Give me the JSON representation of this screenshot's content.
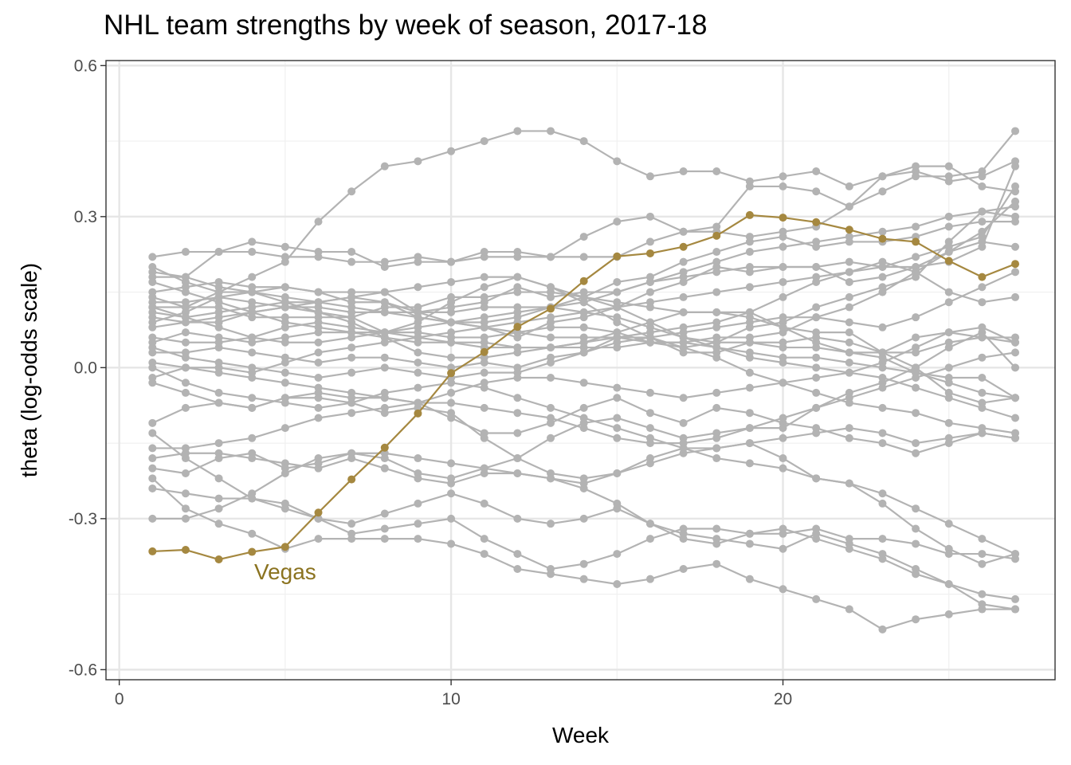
{
  "chart_data": {
    "type": "line",
    "title": "NHL team strengths by week of season, 2017-18",
    "xlabel": "Week",
    "ylabel": "theta (log-odds scale)",
    "xlim": [
      -0.4,
      28.2
    ],
    "ylim": [
      -0.62,
      0.61
    ],
    "xticks": [
      0,
      10,
      20
    ],
    "xtick_labels": [
      "0",
      "10",
      "20"
    ],
    "yticks": [
      -0.6,
      -0.3,
      0.0,
      0.3,
      0.6
    ],
    "ytick_labels": [
      "-0.6",
      "-0.3",
      "0.0",
      "0.3",
      "0.6"
    ],
    "grid": true,
    "theme": "bw",
    "x": [
      1,
      2,
      3,
      4,
      5,
      6,
      7,
      8,
      9,
      10,
      11,
      12,
      13,
      14,
      15,
      16,
      17,
      18,
      19,
      20,
      21,
      22,
      23,
      24,
      25,
      26,
      27
    ],
    "highlight_color": "#a58840",
    "annotation_color": "#8b7320",
    "other_color": "#b3b3b3",
    "annotations": [
      {
        "text": "Vegas",
        "x": 5,
        "y": -0.405,
        "series": "Vegas"
      }
    ],
    "series": [
      {
        "name": "Vegas",
        "highlight": true,
        "values": [
          -0.365,
          -0.362,
          -0.381,
          -0.366,
          -0.356,
          -0.288,
          -0.222,
          -0.159,
          -0.091,
          -0.011,
          0.031,
          0.081,
          0.117,
          0.172,
          0.221,
          0.227,
          0.24,
          0.262,
          0.303,
          0.298,
          0.289,
          0.274,
          0.256,
          0.25,
          0.212,
          0.18,
          0.206
        ]
      },
      {
        "values": [
          0.14,
          0.12,
          0.15,
          0.18,
          0.21,
          0.29,
          0.35,
          0.4,
          0.41,
          0.43,
          0.45,
          0.47,
          0.47,
          0.45,
          0.41,
          0.38,
          0.39,
          0.39,
          0.37,
          0.38,
          0.39,
          0.36,
          0.38,
          0.39,
          0.37,
          0.38,
          0.41
        ]
      },
      {
        "values": [
          0.22,
          0.23,
          0.23,
          0.23,
          0.22,
          0.22,
          0.21,
          0.21,
          0.22,
          0.21,
          0.22,
          0.22,
          0.22,
          0.22,
          0.22,
          0.25,
          0.27,
          0.28,
          0.36,
          0.36,
          0.35,
          0.32,
          0.35,
          0.38,
          0.38,
          0.39,
          0.47
        ]
      },
      {
        "values": [
          0.2,
          0.17,
          0.15,
          0.15,
          0.16,
          0.15,
          0.15,
          0.15,
          0.11,
          0.12,
          0.13,
          0.16,
          0.14,
          0.15,
          0.15,
          0.17,
          0.18,
          0.19,
          0.2,
          0.2,
          0.2,
          0.17,
          0.18,
          0.2,
          0.23,
          0.25,
          0.24
        ]
      },
      {
        "values": [
          0.18,
          0.18,
          0.23,
          0.25,
          0.24,
          0.23,
          0.23,
          0.2,
          0.21,
          0.21,
          0.23,
          0.23,
          0.22,
          0.26,
          0.29,
          0.3,
          0.27,
          0.27,
          0.26,
          0.27,
          0.28,
          0.32,
          0.38,
          0.4,
          0.4,
          0.36,
          0.35
        ]
      },
      {
        "values": [
          0.15,
          0.16,
          0.17,
          0.16,
          0.16,
          0.15,
          0.13,
          0.13,
          0.11,
          0.09,
          0.08,
          0.06,
          0.09,
          0.1,
          0.12,
          0.15,
          0.17,
          0.2,
          0.19,
          0.2,
          0.2,
          0.21,
          0.2,
          0.22,
          0.24,
          0.26,
          0.36
        ]
      },
      {
        "values": [
          0.13,
          0.13,
          0.14,
          0.13,
          0.12,
          0.11,
          0.1,
          0.07,
          0.07,
          0.06,
          0.06,
          0.07,
          0.08,
          0.08,
          0.07,
          0.05,
          0.04,
          0.05,
          0.08,
          0.09,
          0.12,
          0.14,
          0.16,
          0.18,
          0.25,
          0.31,
          0.3
        ]
      },
      {
        "values": [
          0.12,
          0.12,
          0.12,
          0.1,
          0.1,
          0.1,
          0.1,
          0.12,
          0.12,
          0.14,
          0.14,
          0.15,
          0.15,
          0.14,
          0.13,
          0.12,
          0.11,
          0.11,
          0.11,
          0.08,
          0.07,
          0.07,
          0.03,
          0.0,
          -0.05,
          -0.07,
          -0.06
        ]
      },
      {
        "values": [
          0.11,
          0.1,
          0.11,
          0.12,
          0.13,
          0.13,
          0.14,
          0.13,
          0.1,
          0.09,
          0.09,
          0.1,
          0.12,
          0.14,
          0.17,
          0.18,
          0.21,
          0.23,
          0.25,
          0.26,
          0.24,
          0.25,
          0.25,
          0.26,
          0.28,
          0.29,
          0.29
        ]
      },
      {
        "values": [
          0.1,
          0.09,
          0.09,
          0.11,
          0.12,
          0.12,
          0.11,
          0.11,
          0.11,
          0.11,
          0.12,
          0.12,
          0.12,
          0.11,
          0.1,
          0.08,
          0.06,
          0.05,
          0.05,
          0.04,
          0.04,
          0.03,
          0.03,
          0.06,
          0.07,
          0.06,
          0.06
        ]
      },
      {
        "values": [
          0.05,
          0.07,
          0.06,
          0.05,
          0.06,
          0.07,
          0.07,
          0.06,
          0.05,
          0.05,
          0.04,
          0.04,
          0.04,
          0.04,
          0.04,
          0.05,
          0.05,
          0.06,
          0.06,
          0.07,
          0.1,
          0.12,
          0.15,
          0.19,
          0.23,
          0.27,
          0.33
        ]
      },
      {
        "values": [
          0.03,
          0.03,
          0.04,
          0.03,
          0.02,
          0.01,
          0.02,
          0.02,
          0.01,
          0.0,
          0.01,
          0.0,
          0.02,
          0.03,
          0.05,
          0.06,
          0.07,
          0.08,
          0.09,
          0.1,
          0.1,
          0.09,
          0.08,
          0.1,
          0.13,
          0.16,
          0.19
        ]
      },
      {
        "values": [
          0.01,
          0.0,
          -0.01,
          -0.02,
          -0.03,
          -0.04,
          -0.05,
          -0.06,
          -0.07,
          -0.05,
          -0.03,
          -0.02,
          -0.02,
          -0.03,
          -0.04,
          -0.05,
          -0.06,
          -0.05,
          -0.04,
          -0.03,
          -0.02,
          -0.01,
          0.01,
          0.04,
          0.07,
          0.08,
          0.05
        ]
      },
      {
        "values": [
          -0.02,
          0.0,
          0.0,
          -0.01,
          0.01,
          0.03,
          0.04,
          0.05,
          0.06,
          0.07,
          0.08,
          0.09,
          0.1,
          0.11,
          0.12,
          0.13,
          0.14,
          0.15,
          0.16,
          0.17,
          0.18,
          0.19,
          0.2,
          0.2,
          0.21,
          0.24,
          0.4
        ]
      },
      {
        "values": [
          -0.03,
          -0.05,
          -0.07,
          -0.08,
          -0.06,
          -0.05,
          -0.06,
          -0.06,
          -0.07,
          -0.1,
          -0.13,
          -0.13,
          -0.11,
          -0.08,
          -0.06,
          -0.09,
          -0.11,
          -0.08,
          -0.09,
          -0.11,
          -0.12,
          -0.14,
          -0.15,
          -0.17,
          -0.15,
          -0.13,
          -0.14
        ]
      },
      {
        "values": [
          -0.11,
          -0.08,
          -0.07,
          -0.08,
          -0.06,
          -0.06,
          -0.07,
          -0.09,
          -0.08,
          -0.09,
          -0.14,
          -0.18,
          -0.21,
          -0.22,
          -0.21,
          -0.18,
          -0.16,
          -0.16,
          -0.15,
          -0.18,
          -0.22,
          -0.23,
          -0.27,
          -0.32,
          -0.36,
          -0.39,
          -0.37
        ]
      },
      {
        "values": [
          -0.13,
          -0.18,
          -0.22,
          -0.26,
          -0.28,
          -0.3,
          -0.31,
          -0.29,
          -0.27,
          -0.25,
          -0.27,
          -0.3,
          -0.31,
          -0.3,
          -0.28,
          -0.31,
          -0.33,
          -0.34,
          -0.35,
          -0.36,
          -0.33,
          -0.35,
          -0.37,
          -0.4,
          -0.43,
          -0.47,
          -0.48
        ]
      },
      {
        "values": [
          -0.18,
          -0.17,
          -0.17,
          -0.18,
          -0.19,
          -0.2,
          -0.18,
          -0.2,
          -0.22,
          -0.23,
          -0.21,
          -0.21,
          -0.22,
          -0.24,
          -0.27,
          -0.31,
          -0.34,
          -0.35,
          -0.33,
          -0.32,
          -0.34,
          -0.36,
          -0.38,
          -0.41,
          -0.43,
          -0.45,
          -0.46
        ]
      },
      {
        "values": [
          -0.2,
          -0.21,
          -0.18,
          -0.17,
          -0.2,
          -0.19,
          -0.17,
          -0.17,
          -0.18,
          -0.19,
          -0.2,
          -0.21,
          -0.22,
          -0.23,
          -0.21,
          -0.19,
          -0.17,
          -0.16,
          -0.15,
          -0.14,
          -0.13,
          -0.12,
          -0.13,
          -0.15,
          -0.14,
          -0.13,
          -0.14
        ]
      },
      {
        "values": [
          -0.22,
          -0.28,
          -0.31,
          -0.33,
          -0.36,
          -0.34,
          -0.34,
          -0.34,
          -0.34,
          -0.35,
          -0.37,
          -0.4,
          -0.41,
          -0.42,
          -0.43,
          -0.42,
          -0.4,
          -0.39,
          -0.42,
          -0.44,
          -0.46,
          -0.48,
          -0.52,
          -0.5,
          -0.49,
          -0.48,
          -0.48
        ]
      },
      {
        "values": [
          -0.24,
          -0.25,
          -0.26,
          -0.26,
          -0.27,
          -0.3,
          -0.33,
          -0.32,
          -0.31,
          -0.3,
          -0.34,
          -0.37,
          -0.4,
          -0.39,
          -0.37,
          -0.34,
          -0.32,
          -0.32,
          -0.33,
          -0.33,
          -0.32,
          -0.34,
          -0.34,
          -0.35,
          -0.37,
          -0.37,
          -0.38
        ]
      },
      {
        "values": [
          -0.3,
          -0.3,
          -0.28,
          -0.25,
          -0.21,
          -0.18,
          -0.17,
          -0.18,
          -0.21,
          -0.22,
          -0.2,
          -0.18,
          -0.14,
          -0.11,
          -0.1,
          -0.12,
          -0.14,
          -0.13,
          -0.12,
          -0.12,
          -0.08,
          -0.05,
          -0.03,
          0.0,
          0.04,
          0.07,
          0.0
        ]
      },
      {
        "values": [
          0.17,
          0.15,
          0.13,
          0.11,
          0.09,
          0.08,
          0.07,
          0.07,
          0.09,
          0.13,
          0.16,
          0.18,
          0.16,
          0.13,
          0.09,
          0.06,
          0.03,
          0.03,
          0.05,
          0.05,
          0.06,
          0.05,
          0.03,
          0.03,
          0.05,
          0.06,
          0.05
        ]
      },
      {
        "values": [
          0.09,
          0.11,
          0.14,
          0.15,
          0.13,
          0.11,
          0.09,
          0.06,
          0.03,
          0.02,
          0.02,
          0.03,
          0.04,
          0.05,
          0.06,
          0.07,
          0.08,
          0.09,
          0.11,
          0.14,
          0.17,
          0.19,
          0.21,
          0.19,
          0.15,
          0.13,
          0.14
        ]
      },
      {
        "values": [
          0.06,
          0.05,
          0.05,
          0.06,
          0.08,
          0.09,
          0.08,
          0.07,
          0.06,
          0.05,
          0.05,
          0.04,
          0.04,
          0.05,
          0.07,
          0.09,
          0.11,
          0.11,
          0.1,
          0.08,
          0.05,
          0.03,
          0.02,
          -0.01,
          -0.02,
          -0.02,
          -0.06
        ]
      },
      {
        "values": [
          0.04,
          0.02,
          0.01,
          0.0,
          -0.01,
          -0.02,
          -0.01,
          0.0,
          -0.01,
          -0.02,
          -0.01,
          -0.01,
          0.01,
          0.03,
          0.06,
          0.06,
          0.04,
          0.02,
          -0.01,
          -0.03,
          -0.05,
          -0.07,
          -0.08,
          -0.09,
          -0.11,
          -0.12,
          -0.13
        ]
      },
      {
        "values": [
          0.0,
          -0.03,
          -0.05,
          -0.06,
          -0.07,
          -0.08,
          -0.07,
          -0.05,
          -0.04,
          -0.03,
          -0.04,
          -0.06,
          -0.08,
          -0.1,
          -0.12,
          -0.14,
          -0.16,
          -0.18,
          -0.19,
          -0.2,
          -0.22,
          -0.23,
          -0.25,
          -0.28,
          -0.31,
          -0.34,
          -0.37
        ]
      },
      {
        "values": [
          0.19,
          0.18,
          0.16,
          0.15,
          0.14,
          0.13,
          0.12,
          0.11,
          0.1,
          0.09,
          0.08,
          0.07,
          0.06,
          0.06,
          0.06,
          0.05,
          0.05,
          0.04,
          0.03,
          0.02,
          0.02,
          0.01,
          0.0,
          -0.01,
          -0.03,
          -0.05,
          -0.06
        ]
      },
      {
        "values": [
          0.08,
          0.09,
          0.1,
          0.11,
          0.12,
          0.13,
          0.14,
          0.15,
          0.16,
          0.17,
          0.18,
          0.18,
          0.16,
          0.14,
          0.12,
          0.09,
          0.06,
          0.04,
          0.02,
          0.01,
          0.0,
          -0.01,
          -0.02,
          -0.04,
          -0.06,
          -0.08,
          -0.1
        ]
      },
      {
        "values": [
          0.12,
          0.1,
          0.08,
          0.06,
          0.05,
          0.05,
          0.06,
          0.07,
          0.08,
          0.09,
          0.1,
          0.11,
          0.12,
          0.13,
          0.15,
          0.17,
          0.19,
          0.21,
          0.23,
          0.24,
          0.25,
          0.26,
          0.27,
          0.28,
          0.3,
          0.31,
          0.32
        ]
      },
      {
        "values": [
          -0.16,
          -0.16,
          -0.15,
          -0.14,
          -0.12,
          -0.1,
          -0.09,
          -0.08,
          -0.07,
          -0.07,
          -0.08,
          -0.09,
          -0.1,
          -0.12,
          -0.14,
          -0.15,
          -0.15,
          -0.14,
          -0.12,
          -0.1,
          -0.08,
          -0.06,
          -0.04,
          -0.02,
          0.0,
          0.02,
          0.03
        ]
      }
    ]
  }
}
